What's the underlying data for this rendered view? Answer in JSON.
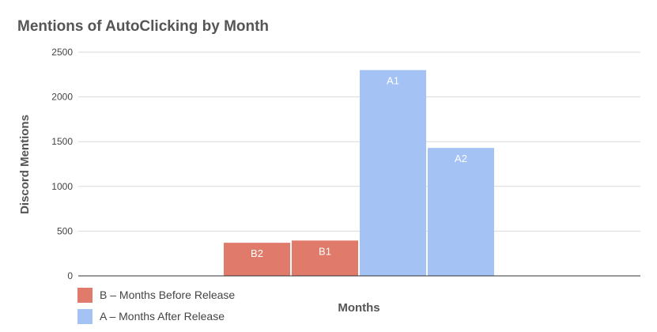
{
  "chart_data": {
    "type": "bar",
    "title": "Mentions of AutoClicking by Month",
    "xlabel": "Months",
    "ylabel": "Discord Mentions",
    "ylim": [
      0,
      2500
    ],
    "yticks": [
      0,
      500,
      1000,
      1500,
      2000,
      2500
    ],
    "grid": true,
    "legend_position": "bottom-left",
    "bars": [
      {
        "label": "B2",
        "value": 370,
        "series": "B"
      },
      {
        "label": "B1",
        "value": 395,
        "series": "B"
      },
      {
        "label": "A1",
        "value": 2300,
        "series": "A"
      },
      {
        "label": "A2",
        "value": 1430,
        "series": "A"
      }
    ],
    "series": [
      {
        "key": "B",
        "name": "B – Months Before Release",
        "color": "#e07b6b"
      },
      {
        "key": "A",
        "name": "A – Months After Release",
        "color": "#a4c2f4"
      }
    ]
  }
}
